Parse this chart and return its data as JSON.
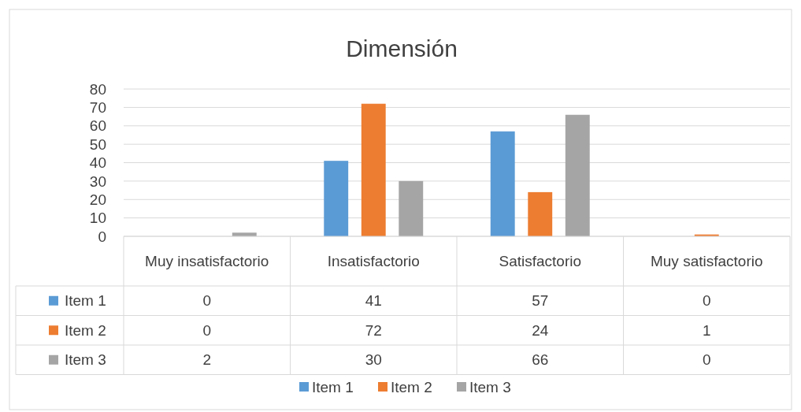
{
  "chart_data": {
    "type": "bar",
    "title": "Dimensión",
    "categories": [
      "Muy insatisfactorio",
      "Insatisfactorio",
      "Satisfactorio",
      "Muy satisfactorio"
    ],
    "series": [
      {
        "name": "Item 1",
        "color": "#5b9bd5",
        "values": [
          0,
          41,
          57,
          0
        ]
      },
      {
        "name": "Item 2",
        "color": "#ed7d31",
        "values": [
          0,
          72,
          24,
          1
        ]
      },
      {
        "name": "Item 3",
        "color": "#a5a5a5",
        "values": [
          2,
          30,
          66,
          0
        ]
      }
    ],
    "ylim": [
      0,
      80
    ],
    "yticks": [
      0,
      10,
      20,
      30,
      40,
      50,
      60,
      70,
      80
    ],
    "grid": "y",
    "legend": "bottom",
    "data_labels": true
  }
}
